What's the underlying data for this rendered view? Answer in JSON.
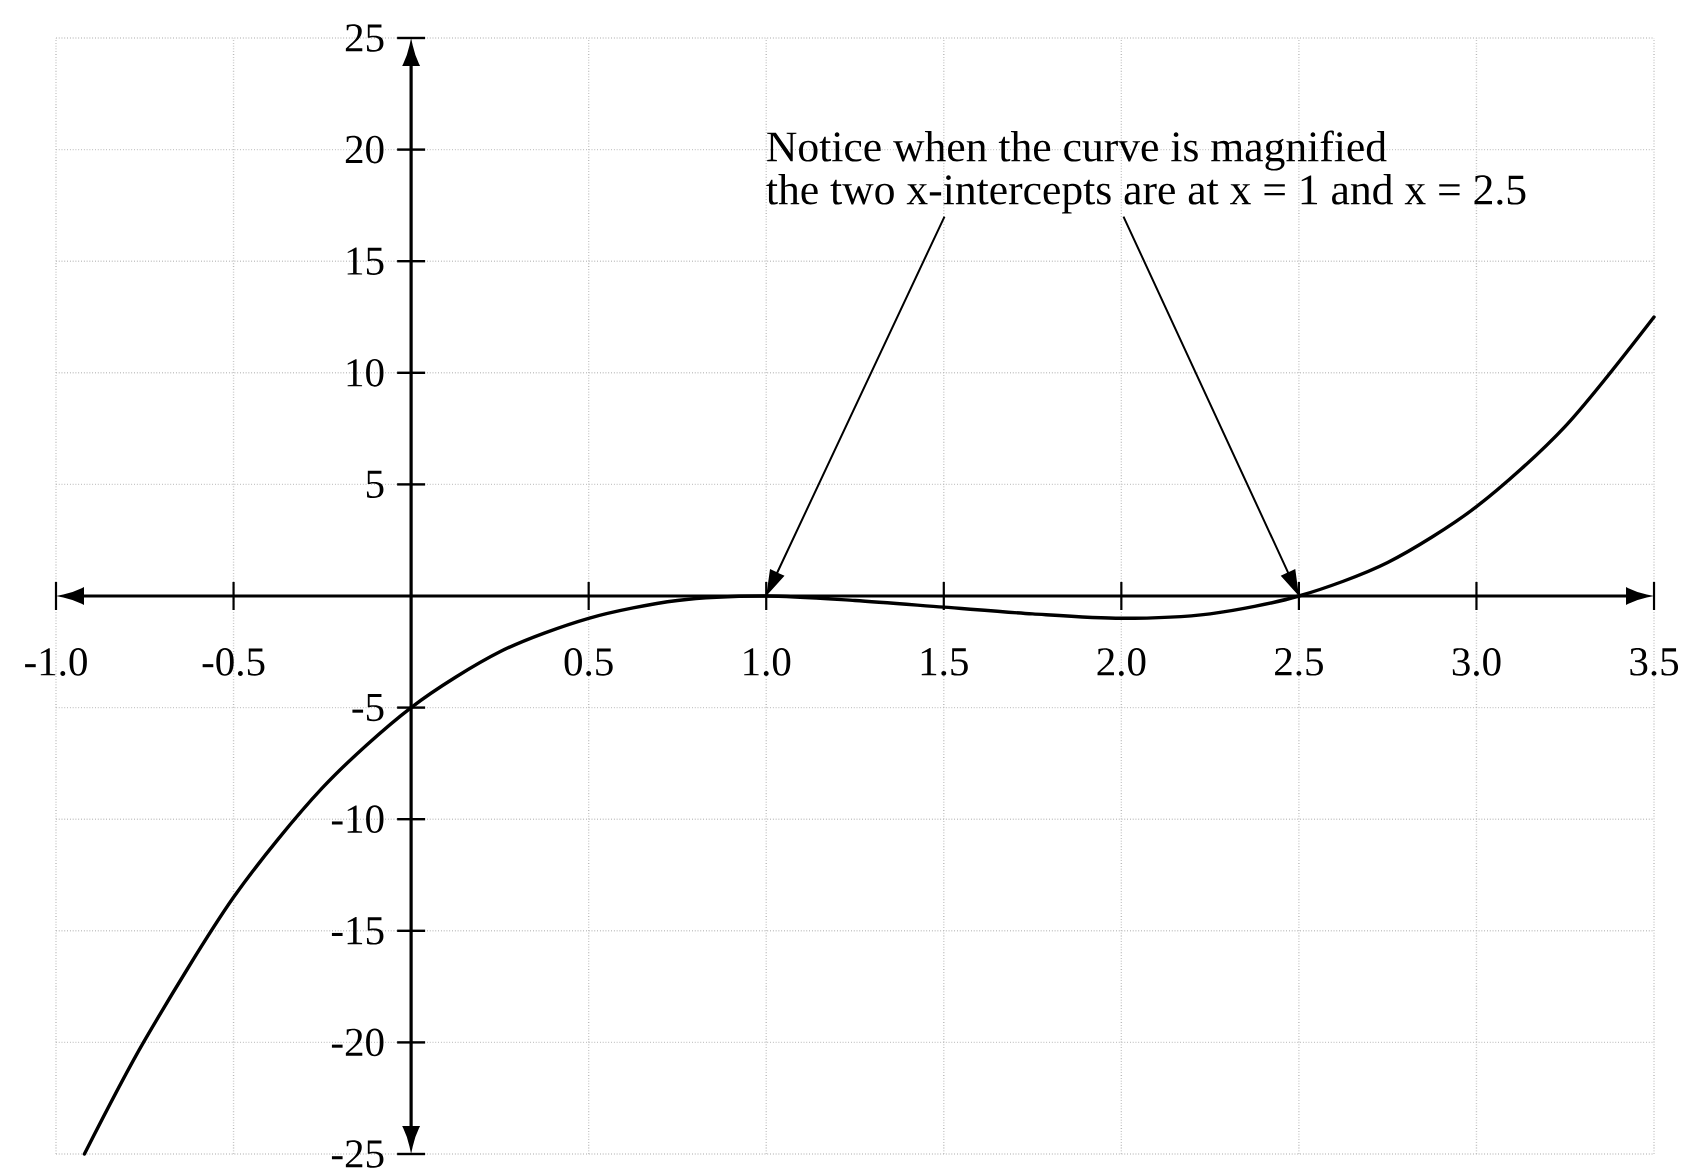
{
  "chart_data": {
    "type": "line",
    "x": [
      -0.92,
      -0.75,
      -0.5,
      -0.25,
      0,
      0.25,
      0.5,
      0.75,
      1,
      1.25,
      1.5,
      1.75,
      2,
      2.25,
      2.5,
      2.75,
      3,
      3.25,
      3.5
    ],
    "values": [
      -25,
      -19.9,
      -13.5,
      -8.6,
      -5,
      -2.5,
      -1,
      -0.2,
      0,
      -0.2,
      -0.5,
      -0.8,
      -1,
      -0.8,
      0,
      1.5,
      4,
      7.6,
      12.5
    ],
    "color": "#000000",
    "marker": "none",
    "line_style": "solid",
    "xlim": [
      -1,
      3.5
    ],
    "ylim": [
      -25,
      25
    ],
    "xticks": [
      {
        "value": -1,
        "label": "-1.0"
      },
      -0.5,
      0.5,
      {
        "value": 1,
        "label": "1.0"
      },
      1.5,
      {
        "value": 2,
        "label": "2.0"
      },
      2.5,
      {
        "value": 3,
        "label": "3.0"
      },
      3.5
    ],
    "yticks": [
      -25,
      -20,
      -15,
      -10,
      -5,
      5,
      10,
      15,
      20,
      25
    ],
    "grid": true,
    "annotations": [
      "Notice when the curve is magnified",
      "the two x-intercepts are at x = 1 and x = 2.5"
    ]
  }
}
